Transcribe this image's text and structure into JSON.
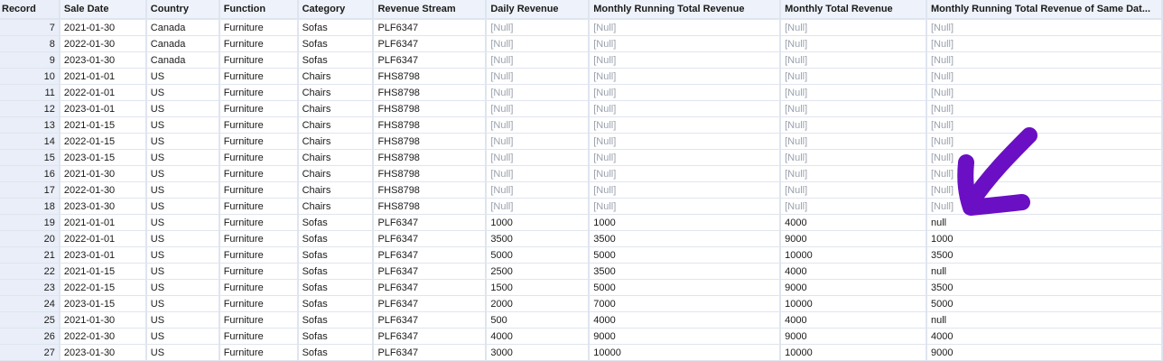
{
  "table": {
    "columns": [
      "Record",
      "Sale Date",
      "Country",
      "Function",
      "Category",
      "Revenue Stream",
      "Daily Revenue",
      "Monthly Running Total Revenue",
      "Monthly Total Revenue",
      "Monthly Running Total Revenue of Same Dat..."
    ],
    "rows": [
      [
        "7",
        "2021-01-30",
        "Canada",
        "Furniture",
        "Sofas",
        "PLF6347",
        "[Null]",
        "[Null]",
        "[Null]",
        "[Null]"
      ],
      [
        "8",
        "2022-01-30",
        "Canada",
        "Furniture",
        "Sofas",
        "PLF6347",
        "[Null]",
        "[Null]",
        "[Null]",
        "[Null]"
      ],
      [
        "9",
        "2023-01-30",
        "Canada",
        "Furniture",
        "Sofas",
        "PLF6347",
        "[Null]",
        "[Null]",
        "[Null]",
        "[Null]"
      ],
      [
        "10",
        "2021-01-01",
        "US",
        "Furniture",
        "Chairs",
        "FHS8798",
        "[Null]",
        "[Null]",
        "[Null]",
        "[Null]"
      ],
      [
        "11",
        "2022-01-01",
        "US",
        "Furniture",
        "Chairs",
        "FHS8798",
        "[Null]",
        "[Null]",
        "[Null]",
        "[Null]"
      ],
      [
        "12",
        "2023-01-01",
        "US",
        "Furniture",
        "Chairs",
        "FHS8798",
        "[Null]",
        "[Null]",
        "[Null]",
        "[Null]"
      ],
      [
        "13",
        "2021-01-15",
        "US",
        "Furniture",
        "Chairs",
        "FHS8798",
        "[Null]",
        "[Null]",
        "[Null]",
        "[Null]"
      ],
      [
        "14",
        "2022-01-15",
        "US",
        "Furniture",
        "Chairs",
        "FHS8798",
        "[Null]",
        "[Null]",
        "[Null]",
        "[Null]"
      ],
      [
        "15",
        "2023-01-15",
        "US",
        "Furniture",
        "Chairs",
        "FHS8798",
        "[Null]",
        "[Null]",
        "[Null]",
        "[Null]"
      ],
      [
        "16",
        "2021-01-30",
        "US",
        "Furniture",
        "Chairs",
        "FHS8798",
        "[Null]",
        "[Null]",
        "[Null]",
        "[Null]"
      ],
      [
        "17",
        "2022-01-30",
        "US",
        "Furniture",
        "Chairs",
        "FHS8798",
        "[Null]",
        "[Null]",
        "[Null]",
        "[Null]"
      ],
      [
        "18",
        "2023-01-30",
        "US",
        "Furniture",
        "Chairs",
        "FHS8798",
        "[Null]",
        "[Null]",
        "[Null]",
        "[Null]"
      ],
      [
        "19",
        "2021-01-01",
        "US",
        "Furniture",
        "Sofas",
        "PLF6347",
        "1000",
        "1000",
        "4000",
        "null"
      ],
      [
        "20",
        "2022-01-01",
        "US",
        "Furniture",
        "Sofas",
        "PLF6347",
        "3500",
        "3500",
        "9000",
        "1000"
      ],
      [
        "21",
        "2023-01-01",
        "US",
        "Furniture",
        "Sofas",
        "PLF6347",
        "5000",
        "5000",
        "10000",
        "3500"
      ],
      [
        "22",
        "2021-01-15",
        "US",
        "Furniture",
        "Sofas",
        "PLF6347",
        "2500",
        "3500",
        "4000",
        "null"
      ],
      [
        "23",
        "2022-01-15",
        "US",
        "Furniture",
        "Sofas",
        "PLF6347",
        "1500",
        "5000",
        "9000",
        "3500"
      ],
      [
        "24",
        "2023-01-15",
        "US",
        "Furniture",
        "Sofas",
        "PLF6347",
        "2000",
        "7000",
        "10000",
        "5000"
      ],
      [
        "25",
        "2021-01-30",
        "US",
        "Furniture",
        "Sofas",
        "PLF6347",
        "500",
        "4000",
        "4000",
        "null"
      ],
      [
        "26",
        "2022-01-30",
        "US",
        "Furniture",
        "Sofas",
        "PLF6347",
        "4000",
        "9000",
        "9000",
        "4000"
      ],
      [
        "27",
        "2023-01-30",
        "US",
        "Furniture",
        "Sofas",
        "PLF6347",
        "3000",
        "10000",
        "10000",
        "9000"
      ]
    ]
  },
  "annotation": {
    "icon": "hand-drawn-arrow-icon",
    "color": "#6a0fc4"
  },
  "colors": {
    "header_bg": "#eef2fa",
    "record_bg": "#e9eef8",
    "null_text": "#9aa1ad",
    "grid_line": "#dfe5ef"
  }
}
